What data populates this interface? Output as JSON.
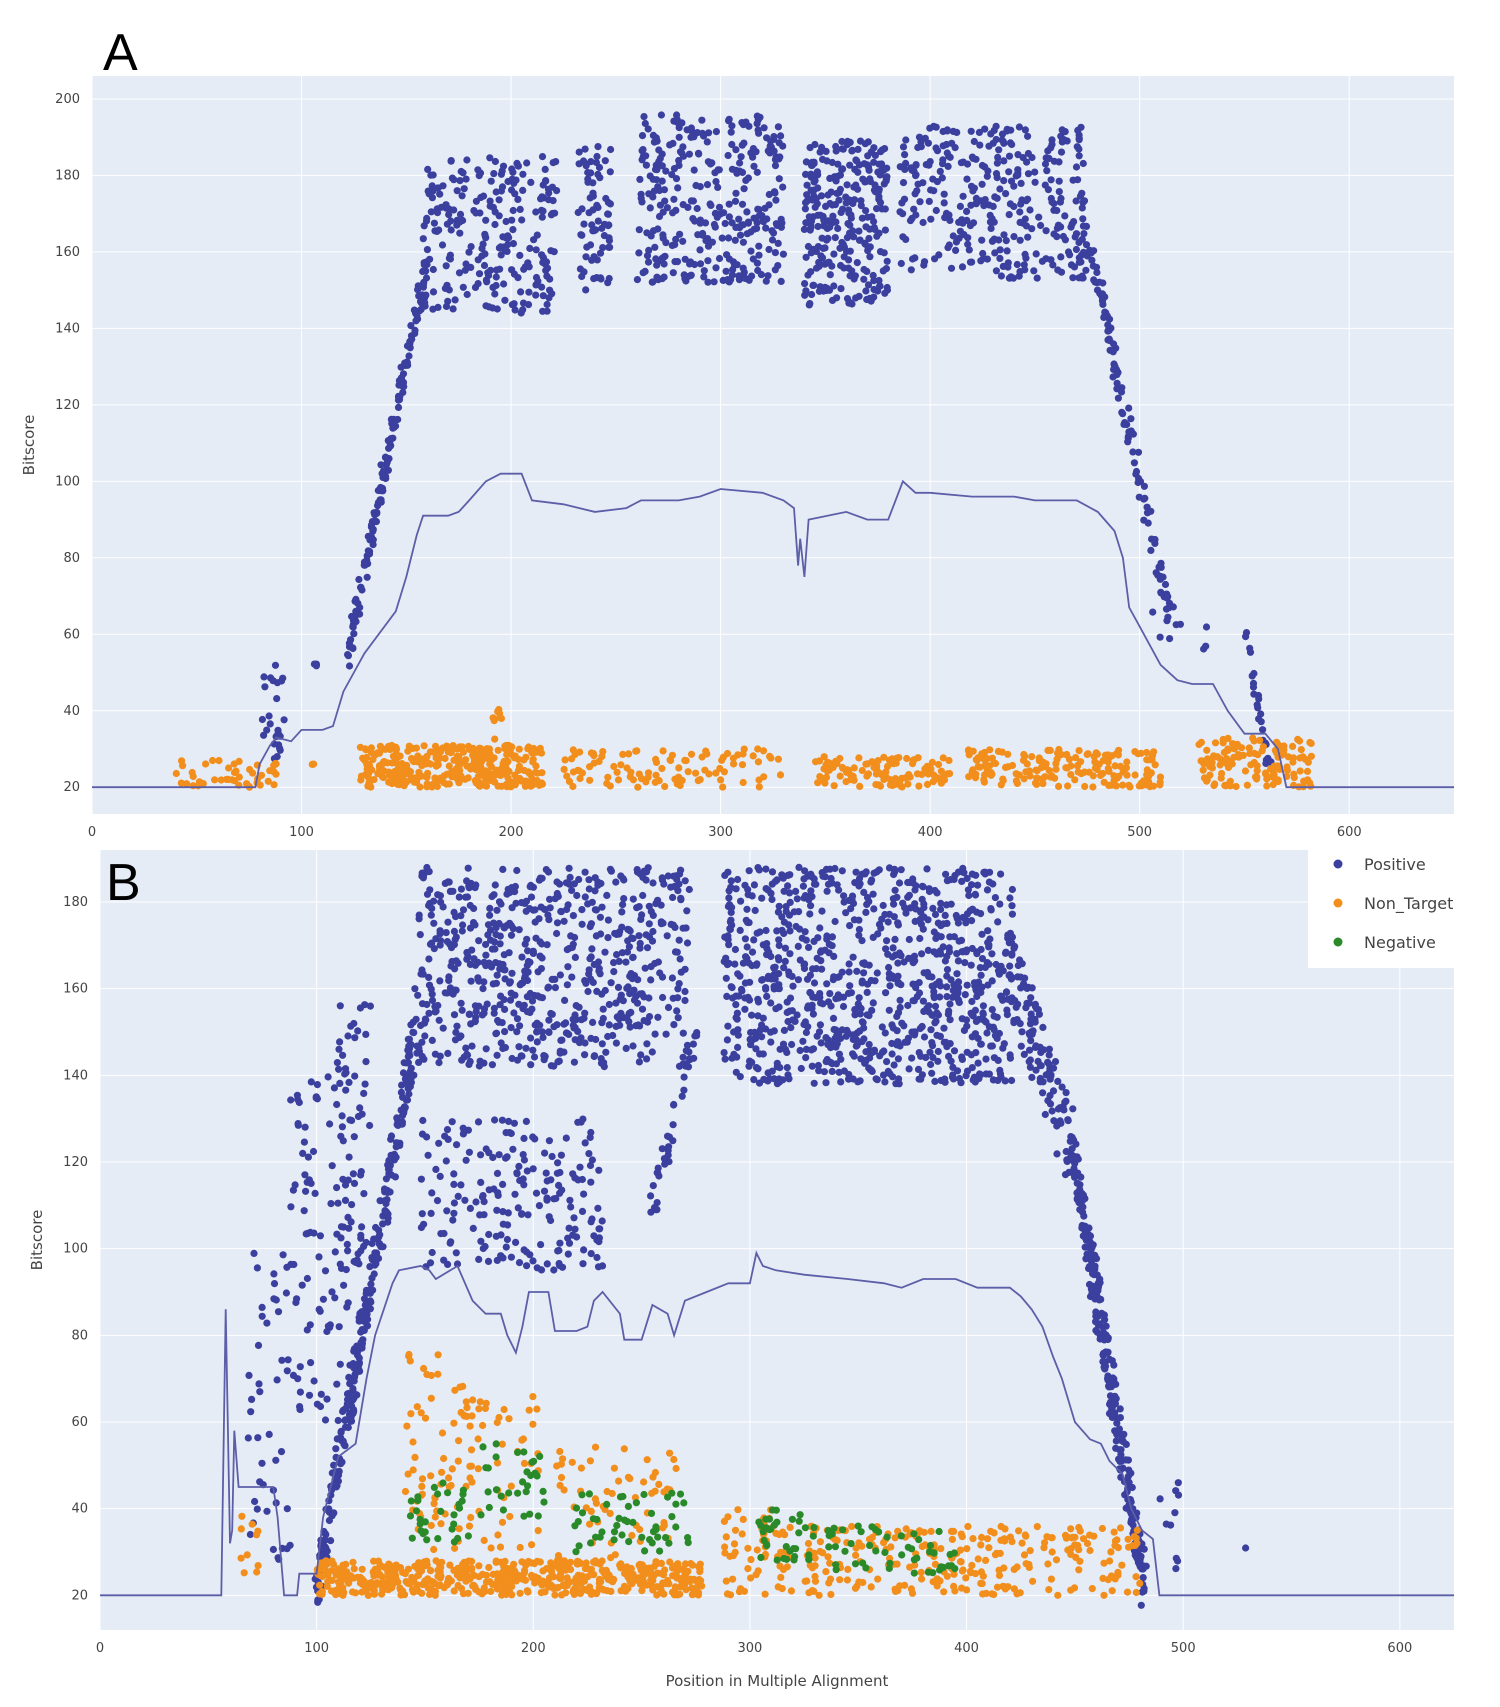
{
  "colors": {
    "plot_bg": "#e5ecf6",
    "grid": "#ffffff",
    "positive": "#3b3f9e",
    "non_target": "#f28e1c",
    "negative": "#2a8a2a",
    "threshold_line": "#5c5fa8"
  },
  "legend": {
    "placement": "top-right of panel B",
    "items": [
      {
        "series": "Positive",
        "label": "Positive",
        "color": "#3b3f9e"
      },
      {
        "series": "Non_Target",
        "label": "Non_Target",
        "color": "#f28e1c"
      },
      {
        "series": "Negative",
        "label": "Negative",
        "color": "#2a8a2a"
      }
    ]
  },
  "chart_data": [
    {
      "panel": "A",
      "type": "scatter",
      "title": "",
      "xlabel": "",
      "ylabel": "Bitscore",
      "xlim": [
        0,
        650
      ],
      "ylim": [
        13,
        206
      ],
      "xticks": [
        0,
        100,
        200,
        300,
        400,
        500,
        600
      ],
      "yticks": [
        20,
        40,
        60,
        80,
        100,
        120,
        140,
        160,
        180,
        200
      ],
      "grid": true,
      "scatter_bands": [
        {
          "series": "Positive",
          "x": [
            80,
            92
          ],
          "y": [
            25,
            52
          ],
          "n": 25
        },
        {
          "series": "Positive",
          "x": [
            105,
            108
          ],
          "y": [
            51,
            54
          ],
          "n": 3
        },
        {
          "series": "Positive",
          "x": [
            122,
            160
          ],
          "y": [
            55,
            158
          ],
          "n": 150,
          "mode": "ramp",
          "spread": 4
        },
        {
          "series": "Positive",
          "x": [
            158,
            222
          ],
          "y": [
            144,
            185
          ],
          "n": 240
        },
        {
          "series": "Positive",
          "x": [
            232,
            248
          ],
          "y": [
            150,
            189
          ],
          "n": 70
        },
        {
          "series": "Positive",
          "x": [
            260,
            330
          ],
          "y": [
            152,
            196
          ],
          "n": 320
        },
        {
          "series": "Positive",
          "x": [
            340,
            380
          ],
          "y": [
            146,
            189
          ],
          "n": 280
        },
        {
          "series": "Positive",
          "x": [
            385,
            475
          ],
          "y": [
            153,
            193
          ],
          "n": 330
        },
        {
          "series": "Positive",
          "x": [
            475,
            515
          ],
          "y": [
            165,
            62
          ],
          "n": 110,
          "mode": "ramp",
          "spread": 4
        },
        {
          "series": "Positive",
          "x": [
            505,
            520
          ],
          "y": [
            58,
            73
          ],
          "n": 8
        },
        {
          "series": "Positive",
          "x": [
            530,
            532
          ],
          "y": [
            55,
            63
          ],
          "n": 3
        },
        {
          "series": "Positive",
          "x": [
            550,
            562
          ],
          "y": [
            62,
            25
          ],
          "n": 25,
          "mode": "ramp",
          "spread": 2
        },
        {
          "series": "Non_Target",
          "x": [
            40,
            88
          ],
          "y": [
            20,
            27
          ],
          "n": 45
        },
        {
          "series": "Non_Target",
          "x": [
            105,
            108
          ],
          "y": [
            24,
            27
          ],
          "n": 2
        },
        {
          "series": "Non_Target",
          "x": [
            128,
            215
          ],
          "y": [
            20,
            31
          ],
          "n": 320
        },
        {
          "series": "Non_Target",
          "x": [
            190,
            200
          ],
          "y": [
            30,
            41
          ],
          "n": 10
        },
        {
          "series": "Non_Target",
          "x": [
            225,
            330
          ],
          "y": [
            20,
            30
          ],
          "n": 100
        },
        {
          "series": "Non_Target",
          "x": [
            345,
            410
          ],
          "y": [
            20,
            28
          ],
          "n": 120
        },
        {
          "series": "Non_Target",
          "x": [
            418,
            510
          ],
          "y": [
            20,
            30
          ],
          "n": 180
        },
        {
          "series": "Non_Target",
          "x": [
            528,
            582
          ],
          "y": [
            20,
            33
          ],
          "n": 130
        }
      ],
      "threshold_line": [
        [
          0,
          20
        ],
        [
          78,
          20
        ],
        [
          80,
          26
        ],
        [
          85,
          31
        ],
        [
          88,
          33
        ],
        [
          95,
          32
        ],
        [
          100,
          35
        ],
        [
          110,
          35
        ],
        [
          115,
          36
        ],
        [
          120,
          45
        ],
        [
          125,
          50
        ],
        [
          130,
          55
        ],
        [
          145,
          66
        ],
        [
          150,
          75
        ],
        [
          155,
          86
        ],
        [
          158,
          91
        ],
        [
          170,
          91
        ],
        [
          175,
          92
        ],
        [
          180,
          95
        ],
        [
          188,
          100
        ],
        [
          195,
          102
        ],
        [
          205,
          102
        ],
        [
          210,
          95
        ],
        [
          225,
          94
        ],
        [
          240,
          92
        ],
        [
          255,
          93
        ],
        [
          262,
          95
        ],
        [
          280,
          95
        ],
        [
          290,
          96
        ],
        [
          300,
          98
        ],
        [
          320,
          97
        ],
        [
          330,
          95
        ],
        [
          335,
          93
        ],
        [
          337,
          78
        ],
        [
          338,
          85
        ],
        [
          340,
          75
        ],
        [
          342,
          90
        ],
        [
          360,
          92
        ],
        [
          370,
          90
        ],
        [
          380,
          90
        ],
        [
          387,
          100
        ],
        [
          393,
          97
        ],
        [
          400,
          97
        ],
        [
          420,
          96
        ],
        [
          440,
          96
        ],
        [
          450,
          95
        ],
        [
          470,
          95
        ],
        [
          480,
          92
        ],
        [
          488,
          87
        ],
        [
          492,
          80
        ],
        [
          495,
          67
        ],
        [
          500,
          62
        ],
        [
          510,
          52
        ],
        [
          518,
          48
        ],
        [
          525,
          47
        ],
        [
          535,
          47
        ],
        [
          542,
          40
        ],
        [
          550,
          34
        ],
        [
          560,
          34
        ],
        [
          566,
          30
        ],
        [
          570,
          20
        ],
        [
          650,
          20
        ]
      ]
    },
    {
      "panel": "B",
      "type": "scatter",
      "title": "",
      "xlabel": "Position in Multiple Alignment",
      "ylabel": "Bitscore",
      "xlim": [
        0,
        625
      ],
      "ylim": [
        12,
        192
      ],
      "xticks": [
        0,
        100,
        200,
        300,
        400,
        500,
        600
      ],
      "yticks": [
        20,
        40,
        60,
        80,
        100,
        120,
        140,
        160,
        180
      ],
      "grid": true,
      "scatter_bands": [
        {
          "series": "Positive",
          "x": [
            68,
            88
          ],
          "y": [
            28,
            100
          ],
          "n": 45
        },
        {
          "series": "Positive",
          "x": [
            88,
            115
          ],
          "y": [
            60,
            140
          ],
          "n": 90
        },
        {
          "series": "Positive",
          "x": [
            100,
            145
          ],
          "y": [
            22,
            148
          ],
          "n": 300,
          "mode": "ramp",
          "spread": 6
        },
        {
          "series": "Positive",
          "x": [
            108,
            125
          ],
          "y": [
            95,
            157
          ],
          "n": 60
        },
        {
          "series": "Positive",
          "x": [
            145,
            272
          ],
          "y": [
            142,
            188
          ],
          "n": 650
        },
        {
          "series": "Positive",
          "x": [
            148,
            232
          ],
          "y": [
            95,
            130
          ],
          "n": 200
        },
        {
          "series": "Positive",
          "x": [
            255,
            275
          ],
          "y": [
            110,
            150
          ],
          "n": 40,
          "mode": "ramp",
          "spread": 5
        },
        {
          "series": "Positive",
          "x": [
            288,
            422
          ],
          "y": [
            138,
            188
          ],
          "n": 900
        },
        {
          "series": "Positive",
          "x": [
            420,
            450
          ],
          "y": [
            165,
            120
          ],
          "n": 120,
          "mode": "ramp",
          "spread": 10
        },
        {
          "series": "Positive",
          "x": [
            450,
            482
          ],
          "y": [
            120,
            22
          ],
          "n": 250,
          "mode": "ramp",
          "spread": 7
        },
        {
          "series": "Positive",
          "x": [
            485,
            500
          ],
          "y": [
            25,
            49
          ],
          "n": 10
        },
        {
          "series": "Positive",
          "x": [
            528,
            532
          ],
          "y": [
            29,
            31
          ],
          "n": 1
        },
        {
          "series": "Non_Target",
          "x": [
            65,
            75
          ],
          "y": [
            25,
            42
          ],
          "n": 10
        },
        {
          "series": "Non_Target",
          "x": [
            100,
            278
          ],
          "y": [
            20,
            28
          ],
          "n": 560
        },
        {
          "series": "Non_Target",
          "x": [
            140,
            172
          ],
          "y": [
            30,
            76
          ],
          "n": 70
        },
        {
          "series": "Non_Target",
          "x": [
            170,
            205
          ],
          "y": [
            30,
            66
          ],
          "n": 40
        },
        {
          "series": "Non_Target",
          "x": [
            210,
            268
          ],
          "y": [
            28,
            55
          ],
          "n": 60
        },
        {
          "series": "Non_Target",
          "x": [
            288,
            320
          ],
          "y": [
            20,
            40
          ],
          "n": 60
        },
        {
          "series": "Non_Target",
          "x": [
            325,
            480
          ],
          "y": [
            20,
            36
          ],
          "n": 260
        },
        {
          "series": "Negative",
          "x": [
            140,
            172
          ],
          "y": [
            32,
            46
          ],
          "n": 30
        },
        {
          "series": "Negative",
          "x": [
            175,
            205
          ],
          "y": [
            38,
            56
          ],
          "n": 30
        },
        {
          "series": "Negative",
          "x": [
            215,
            272
          ],
          "y": [
            30,
            44
          ],
          "n": 50
        },
        {
          "series": "Negative",
          "x": [
            302,
            330
          ],
          "y": [
            28,
            40
          ],
          "n": 35
        },
        {
          "series": "Negative",
          "x": [
            335,
            395
          ],
          "y": [
            25,
            36
          ],
          "n": 50
        }
      ],
      "threshold_line": [
        [
          0,
          20
        ],
        [
          56,
          20
        ],
        [
          58,
          86
        ],
        [
          60,
          32
        ],
        [
          61,
          35
        ],
        [
          62,
          58
        ],
        [
          64,
          45
        ],
        [
          80,
          45
        ],
        [
          82,
          38
        ],
        [
          85,
          20
        ],
        [
          91,
          20
        ],
        [
          92,
          25
        ],
        [
          100,
          25
        ],
        [
          103,
          38
        ],
        [
          110,
          52
        ],
        [
          118,
          55
        ],
        [
          123,
          70
        ],
        [
          127,
          80
        ],
        [
          135,
          92
        ],
        [
          138,
          95
        ],
        [
          148,
          96
        ],
        [
          152,
          95
        ],
        [
          155,
          93
        ],
        [
          165,
          96
        ],
        [
          172,
          88
        ],
        [
          178,
          85
        ],
        [
          185,
          85
        ],
        [
          188,
          80
        ],
        [
          192,
          76
        ],
        [
          195,
          82
        ],
        [
          198,
          90
        ],
        [
          207,
          90
        ],
        [
          210,
          81
        ],
        [
          220,
          81
        ],
        [
          225,
          82
        ],
        [
          228,
          88
        ],
        [
          232,
          90
        ],
        [
          240,
          85
        ],
        [
          242,
          79
        ],
        [
          250,
          79
        ],
        [
          255,
          87
        ],
        [
          262,
          85
        ],
        [
          265,
          80
        ],
        [
          270,
          88
        ],
        [
          280,
          90
        ],
        [
          290,
          92
        ],
        [
          300,
          92
        ],
        [
          303,
          99
        ],
        [
          306,
          96
        ],
        [
          312,
          95
        ],
        [
          325,
          94
        ],
        [
          345,
          93
        ],
        [
          362,
          92
        ],
        [
          370,
          91
        ],
        [
          380,
          93
        ],
        [
          395,
          93
        ],
        [
          405,
          91
        ],
        [
          420,
          91
        ],
        [
          425,
          89
        ],
        [
          430,
          86
        ],
        [
          435,
          82
        ],
        [
          440,
          75
        ],
        [
          444,
          70
        ],
        [
          450,
          60
        ],
        [
          457,
          56
        ],
        [
          462,
          55
        ],
        [
          466,
          51
        ],
        [
          472,
          48
        ],
        [
          476,
          40
        ],
        [
          481,
          35
        ],
        [
          486,
          33
        ],
        [
          489,
          20
        ],
        [
          625,
          20
        ]
      ]
    }
  ]
}
